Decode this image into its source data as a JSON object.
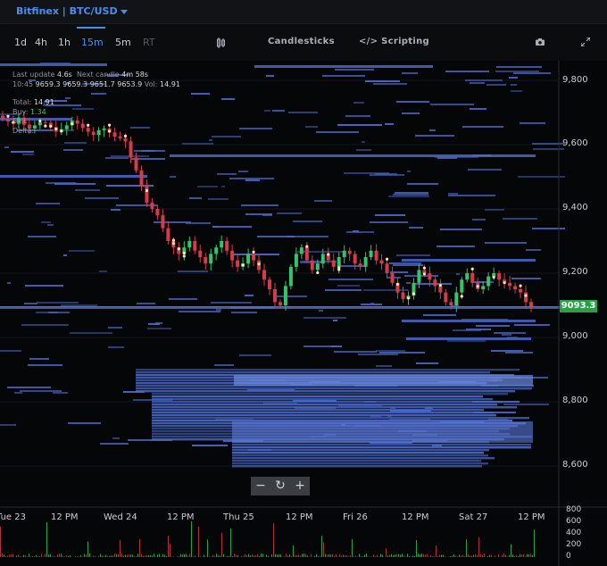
{
  "header": {
    "exchange": "Bitfinex",
    "separator": " | ",
    "pair": "BTC/USD"
  },
  "toolbar": {
    "timeframes": [
      "1d",
      "4h",
      "1h",
      "15m",
      "5m",
      "RT"
    ],
    "active_timeframe": "15m",
    "candlesticks_label": "Candlesticks",
    "scripting_label": "Scripting",
    "scripting_icon": "code-icon",
    "camera_icon": "camera-icon",
    "expand_icon": "expand-icon"
  },
  "info": {
    "last_update_label": "Last update",
    "last_update_value": "4.6s",
    "next_candle_label": "Next candle",
    "next_candle_value": "4m 58s",
    "ohlcv_label": "10:45",
    "open": "9659.3",
    "high": "9659.3",
    "low": "9651.7",
    "close": "9653.9",
    "vol_label": "Vol:",
    "vol": "14.91",
    "total_label": "Total:",
    "total": "14.91",
    "buy_label": "Buy:",
    "buy": "1.34",
    "sell_label": "Sell:",
    "delta_label": "Delta:"
  },
  "zoom": {
    "zoom_out": "−",
    "reset": "↻",
    "zoom_in": "+"
  },
  "price_tag": "9093.3",
  "colors": {
    "accent": "#4a8ff0",
    "up": "#34c46a",
    "down": "#d43c4a",
    "liquidity": "#4a69c8",
    "price_line": "#25a244"
  },
  "chart_data": {
    "type": "heatmap",
    "title": "",
    "y_ticks": [
      "9,800",
      "9,600",
      "9,400",
      "9,200",
      "9,000",
      "8,800",
      "8,600"
    ],
    "y_values": [
      9800,
      9600,
      9400,
      9200,
      9000,
      8800,
      8600
    ],
    "ylim": [
      8500,
      9860
    ],
    "x_ticks": [
      "Tue 23",
      "12 PM",
      "Wed 24",
      "12 PM",
      "Thu 25",
      "12 PM",
      "Fri 26",
      "12 PM",
      "Sat 27",
      "12 PM"
    ],
    "volume_ticks": [
      "800",
      "600",
      "400",
      "200",
      "0"
    ],
    "volume_values": [
      800,
      600,
      400,
      200,
      0
    ],
    "last_price": 9093.3,
    "price_series": [
      9690,
      9680,
      9672,
      9665,
      9684,
      9662,
      9650,
      9660,
      9670,
      9668,
      9655,
      9640,
      9648,
      9660,
      9675,
      9665,
      9652,
      9640,
      9630,
      9645,
      9650,
      9638,
      9625,
      9620,
      9610,
      9560,
      9520,
      9470,
      9420,
      9400,
      9380,
      9340,
      9300,
      9280,
      9260,
      9280,
      9300,
      9270,
      9250,
      9230,
      9260,
      9280,
      9300,
      9270,
      9240,
      9220,
      9230,
      9260,
      9240,
      9210,
      9180,
      9150,
      9110,
      9100,
      9160,
      9220,
      9260,
      9280,
      9240,
      9210,
      9230,
      9260,
      9240,
      9220,
      9250,
      9270,
      9260,
      9230,
      9220,
      9250,
      9270,
      9240,
      9230,
      9200,
      9170,
      9140,
      9120,
      9130,
      9170,
      9210,
      9200,
      9180,
      9160,
      9140,
      9110,
      9100,
      9140,
      9180,
      9200,
      9170,
      9150,
      9160,
      9190,
      9200,
      9180,
      9170,
      9160,
      9150,
      9140,
      9110,
      9093
    ]
  }
}
